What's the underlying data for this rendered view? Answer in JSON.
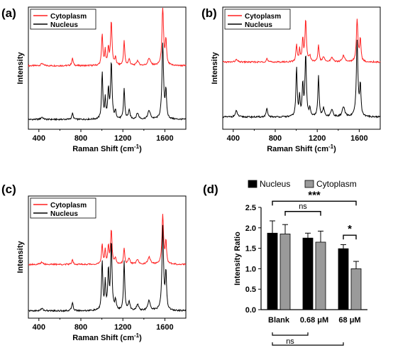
{
  "colors": {
    "cytoplasm": "#ff1f1f",
    "nucleus": "#000000",
    "bar_nucleus": "#000000",
    "bar_cytoplasm": "#9a9a9a"
  },
  "chart_data": [
    {
      "panel": "(a)",
      "type": "line",
      "xlabel": "Raman Shift (cm",
      "xlabel_sup": "-1",
      "xlabel_end": ")",
      "ylabel": "Intensity",
      "xlim": [
        300,
        1800
      ],
      "xticks": [
        "400",
        "800",
        "1200",
        "1600"
      ],
      "legend_position": "top-left",
      "series": [
        {
          "name": "Cytoplasm",
          "color": "#ff1f1f",
          "offset": 0.52,
          "peaks": [
            [
              430,
              0.02,
              12
            ],
            [
              720,
              0.06,
              8
            ],
            [
              1003,
              0.26,
              7
            ],
            [
              1032,
              0.12,
              6
            ],
            [
              1062,
              0.14,
              7
            ],
            [
              1090,
              0.36,
              8
            ],
            [
              1130,
              0.06,
              8
            ],
            [
              1212,
              0.2,
              7
            ],
            [
              1260,
              0.05,
              10
            ],
            [
              1340,
              0.04,
              12
            ],
            [
              1450,
              0.06,
              14
            ],
            [
              1580,
              0.48,
              9
            ],
            [
              1610,
              0.2,
              7
            ]
          ]
        },
        {
          "name": "Nucleus",
          "color": "#000000",
          "offset": 0.08,
          "peaks": [
            [
              430,
              0.02,
              12
            ],
            [
              720,
              0.05,
              8
            ],
            [
              1003,
              0.38,
              7
            ],
            [
              1032,
              0.16,
              6
            ],
            [
              1062,
              0.24,
              7
            ],
            [
              1090,
              0.46,
              8
            ],
            [
              1130,
              0.06,
              8
            ],
            [
              1212,
              0.25,
              7
            ],
            [
              1260,
              0.07,
              10
            ],
            [
              1340,
              0.05,
              12
            ],
            [
              1450,
              0.07,
              14
            ],
            [
              1580,
              0.62,
              9
            ],
            [
              1610,
              0.22,
              7
            ]
          ]
        }
      ]
    },
    {
      "panel": "(b)",
      "type": "line",
      "xlabel": "Raman Shift (cm",
      "xlabel_sup": "-1",
      "xlabel_end": ")",
      "ylabel": "Intensity",
      "xlim": [
        300,
        1800
      ],
      "xticks": [
        "400",
        "800",
        "1200",
        "1600"
      ],
      "legend_position": "top-left",
      "series": [
        {
          "name": "Cytoplasm",
          "color": "#ff1f1f",
          "offset": 0.55,
          "peaks": [
            [
              430,
              0.02,
              12
            ],
            [
              720,
              0.03,
              8
            ],
            [
              1003,
              0.14,
              7
            ],
            [
              1032,
              0.1,
              6
            ],
            [
              1062,
              0.18,
              7
            ],
            [
              1090,
              0.34,
              8
            ],
            [
              1130,
              0.05,
              8
            ],
            [
              1212,
              0.14,
              7
            ],
            [
              1260,
              0.04,
              10
            ],
            [
              1340,
              0.04,
              12
            ],
            [
              1450,
              0.05,
              14
            ],
            [
              1580,
              0.34,
              9
            ],
            [
              1610,
              0.18,
              7
            ]
          ]
        },
        {
          "name": "Nucleus",
          "color": "#000000",
          "offset": 0.1,
          "peaks": [
            [
              430,
              0.05,
              12
            ],
            [
              720,
              0.07,
              8
            ],
            [
              1003,
              0.4,
              7
            ],
            [
              1032,
              0.16,
              6
            ],
            [
              1062,
              0.26,
              7
            ],
            [
              1090,
              0.5,
              8
            ],
            [
              1130,
              0.06,
              8
            ],
            [
              1212,
              0.33,
              7
            ],
            [
              1260,
              0.07,
              10
            ],
            [
              1340,
              0.06,
              12
            ],
            [
              1450,
              0.08,
              14
            ],
            [
              1580,
              0.62,
              9
            ],
            [
              1610,
              0.25,
              7
            ]
          ]
        }
      ]
    },
    {
      "panel": "(c)",
      "type": "line",
      "xlabel": "Raman Shift (cm",
      "xlabel_sup": "-1",
      "xlabel_end": ")",
      "ylabel": "Intensity",
      "xlim": [
        300,
        1800
      ],
      "xticks": [
        "400",
        "800",
        "1200",
        "1600"
      ],
      "legend_position": "top-left",
      "series": [
        {
          "name": "Cytoplasm",
          "color": "#ff1f1f",
          "offset": 0.44,
          "peaks": [
            [
              430,
              0.02,
              12
            ],
            [
              720,
              0.04,
              8
            ],
            [
              1003,
              0.16,
              7
            ],
            [
              1032,
              0.12,
              6
            ],
            [
              1062,
              0.14,
              7
            ],
            [
              1090,
              0.28,
              8
            ],
            [
              1130,
              0.05,
              8
            ],
            [
              1212,
              0.13,
              7
            ],
            [
              1260,
              0.05,
              10
            ],
            [
              1340,
              0.04,
              12
            ],
            [
              1450,
              0.06,
              14
            ],
            [
              1580,
              0.4,
              9
            ],
            [
              1610,
              0.18,
              7
            ]
          ]
        },
        {
          "name": "Nucleus",
          "color": "#000000",
          "offset": 0.06,
          "peaks": [
            [
              430,
              0.02,
              12
            ],
            [
              720,
              0.07,
              8
            ],
            [
              1003,
              0.4,
              7
            ],
            [
              1032,
              0.22,
              6
            ],
            [
              1062,
              0.32,
              7
            ],
            [
              1090,
              0.55,
              8
            ],
            [
              1130,
              0.08,
              8
            ],
            [
              1212,
              0.4,
              7
            ],
            [
              1260,
              0.07,
              10
            ],
            [
              1340,
              0.05,
              12
            ],
            [
              1450,
              0.08,
              14
            ],
            [
              1580,
              0.68,
              9
            ],
            [
              1610,
              0.3,
              7
            ]
          ]
        }
      ]
    },
    {
      "panel": "(d)",
      "type": "bar",
      "ylabel": "Intensity Ratio",
      "ylim": [
        0.0,
        2.5
      ],
      "yticks": [
        "0.0",
        "0.5",
        "1.0",
        "1.5",
        "2.0",
        "2.5"
      ],
      "categories": [
        "Blank",
        "0.68 μM",
        "68 μM"
      ],
      "legend_position": "top",
      "series": [
        {
          "name": "Nucleus",
          "color": "#000000",
          "values": [
            1.87,
            1.75,
            1.49
          ],
          "errors": [
            0.3,
            0.12,
            0.1
          ]
        },
        {
          "name": "Cytoplasm",
          "color": "#9a9a9a",
          "values": [
            1.85,
            1.65,
            1.0
          ],
          "errors": [
            0.23,
            0.27,
            0.18
          ]
        }
      ],
      "significance": [
        {
          "label": "ns",
          "position": "above",
          "from": [
            1,
            0
          ],
          "to": [
            1,
            1
          ],
          "height": 2.4
        },
        {
          "label": "***",
          "position": "above",
          "from": [
            0,
            0
          ],
          "to": [
            1,
            2
          ],
          "height": 2.65
        },
        {
          "label": "*",
          "position": "above",
          "from": [
            0,
            2
          ],
          "to": [
            1,
            2
          ],
          "height": 1.82
        },
        {
          "label": "ns",
          "position": "below",
          "from": [
            0,
            0
          ],
          "to": [
            0,
            1
          ],
          "level": 1
        },
        {
          "label": "ns",
          "position": "below",
          "from": [
            0,
            0
          ],
          "to": [
            0,
            2
          ],
          "level": 2
        }
      ]
    }
  ]
}
